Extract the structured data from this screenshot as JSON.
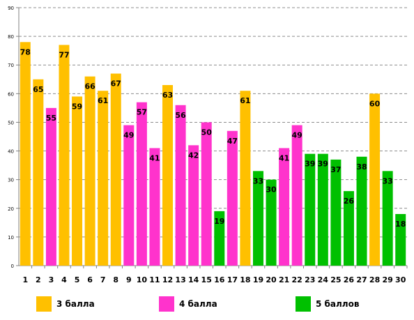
{
  "chart_data": {
    "type": "bar",
    "categories": [
      "1",
      "2",
      "3",
      "4",
      "5",
      "6",
      "7",
      "8",
      "9",
      "10",
      "11",
      "12",
      "13",
      "14",
      "15",
      "16",
      "17",
      "18",
      "19",
      "20",
      "21",
      "22",
      "23",
      "24",
      "25",
      "26",
      "27",
      "28",
      "29",
      "30"
    ],
    "values": [
      78,
      65,
      55,
      77,
      59,
      66,
      61,
      67,
      49,
      57,
      41,
      63,
      56,
      42,
      50,
      19,
      47,
      61,
      33,
      30,
      41,
      49,
      39,
      39,
      37,
      26,
      38,
      60,
      33,
      18
    ],
    "groups": [
      0,
      0,
      1,
      0,
      0,
      0,
      0,
      0,
      1,
      1,
      1,
      0,
      1,
      1,
      1,
      2,
      1,
      0,
      2,
      2,
      1,
      1,
      2,
      2,
      2,
      2,
      2,
      0,
      2,
      2
    ],
    "y_ticks": [
      0,
      10,
      20,
      30,
      40,
      50,
      60,
      70,
      80,
      90
    ],
    "ylim": [
      0,
      90
    ],
    "grid": true,
    "legend_position": "bottom",
    "legend": [
      {
        "label": "3 балла",
        "color": "#FFC000"
      },
      {
        "label": "4 балла",
        "color": "#FF33CC"
      },
      {
        "label": "5 баллов",
        "color": "#00C000"
      }
    ]
  }
}
